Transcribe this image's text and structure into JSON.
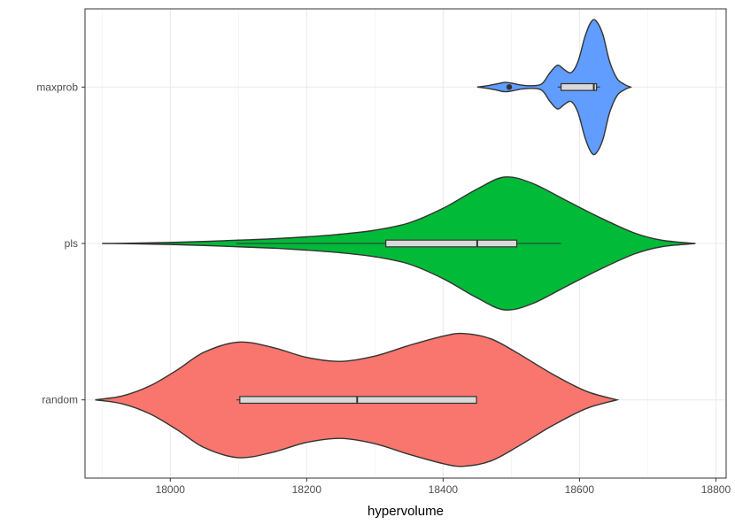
{
  "chart_data": {
    "type": "violin",
    "orientation": "horizontal",
    "xlabel": "hypervolume",
    "ylabel": "",
    "xlim": [
      17875,
      18815
    ],
    "x_ticks": [
      "18000",
      "18200",
      "18400",
      "18600",
      "18800"
    ],
    "grid": true,
    "legend": "none",
    "series": [
      {
        "category": "maxprob",
        "color": "#619cff",
        "density": [
          [
            18450,
            0.0
          ],
          [
            18465,
            0.02
          ],
          [
            18480,
            0.05
          ],
          [
            18490,
            0.07
          ],
          [
            18500,
            0.06
          ],
          [
            18515,
            0.03
          ],
          [
            18530,
            0.02
          ],
          [
            18545,
            0.05
          ],
          [
            18557,
            0.22
          ],
          [
            18568,
            0.33
          ],
          [
            18578,
            0.26
          ],
          [
            18588,
            0.22
          ],
          [
            18598,
            0.39
          ],
          [
            18608,
            0.76
          ],
          [
            18617,
            0.98
          ],
          [
            18624,
            1.0
          ],
          [
            18634,
            0.8
          ],
          [
            18644,
            0.39
          ],
          [
            18655,
            0.13
          ],
          [
            18666,
            0.04
          ],
          [
            18675,
            0.0
          ]
        ],
        "box": {
          "whisker_low": 18568,
          "q1": 18573,
          "median": 18621,
          "q3": 18625,
          "whisker_high": 18630
        },
        "outliers": [
          18497
        ]
      },
      {
        "category": "pls",
        "color": "#00ba38",
        "density": [
          [
            17900,
            0.0
          ],
          [
            17950,
            0.005
          ],
          [
            18000,
            0.015
          ],
          [
            18050,
            0.03
          ],
          [
            18100,
            0.05
          ],
          [
            18150,
            0.07
          ],
          [
            18200,
            0.1
          ],
          [
            18250,
            0.14
          ],
          [
            18300,
            0.2
          ],
          [
            18350,
            0.31
          ],
          [
            18400,
            0.53
          ],
          [
            18450,
            0.82
          ],
          [
            18490,
            1.0
          ],
          [
            18530,
            0.91
          ],
          [
            18580,
            0.65
          ],
          [
            18630,
            0.39
          ],
          [
            18680,
            0.16
          ],
          [
            18720,
            0.05
          ],
          [
            18770,
            0.0
          ]
        ],
        "box": {
          "whisker_low": 18097,
          "q1": 18316,
          "median": 18450,
          "q3": 18508,
          "whisker_high": 18573
        },
        "outliers": []
      },
      {
        "category": "random",
        "color": "#f8766d",
        "density": [
          [
            17890,
            0.0
          ],
          [
            17930,
            0.06
          ],
          [
            17970,
            0.21
          ],
          [
            18010,
            0.45
          ],
          [
            18050,
            0.72
          ],
          [
            18100,
            0.87
          ],
          [
            18150,
            0.79
          ],
          [
            18200,
            0.64
          ],
          [
            18250,
            0.58
          ],
          [
            18300,
            0.66
          ],
          [
            18350,
            0.82
          ],
          [
            18400,
            0.96
          ],
          [
            18430,
            1.0
          ],
          [
            18470,
            0.92
          ],
          [
            18510,
            0.7
          ],
          [
            18560,
            0.39
          ],
          [
            18610,
            0.13
          ],
          [
            18655,
            0.0
          ]
        ],
        "box": {
          "whisker_low": 18097,
          "q1": 18102,
          "median": 18274,
          "q3": 18449,
          "whisker_high": 18449
        },
        "outliers": []
      }
    ]
  }
}
